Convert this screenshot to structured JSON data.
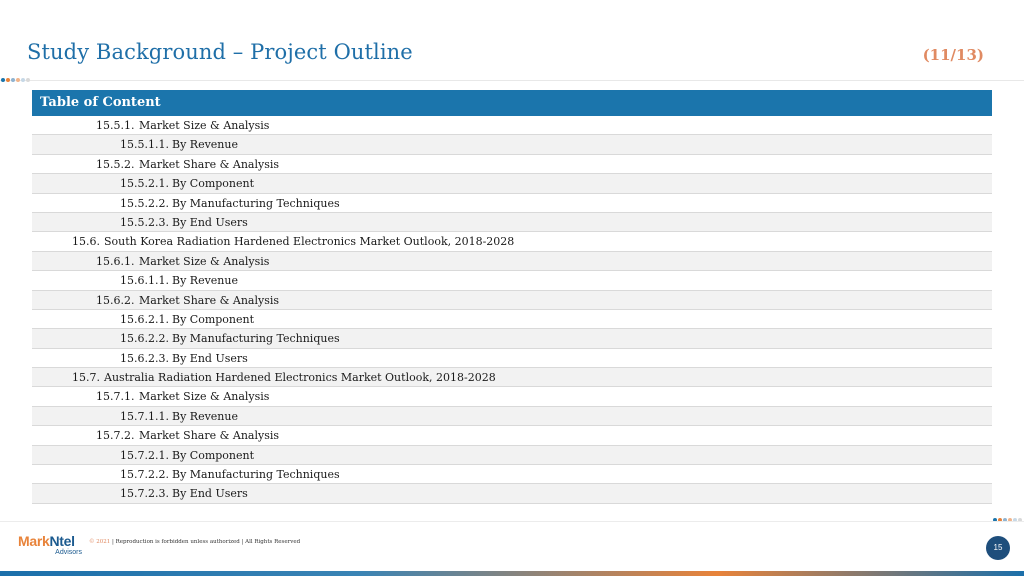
{
  "header": {
    "title": "Study Background – Project Outline",
    "page_counter": "(11/13)"
  },
  "colors": {
    "title": "#1f6fa8",
    "accent_orange": "#e08a62",
    "table_header": "#1b75ac",
    "row_alt": "#f2f2f2",
    "dots": [
      "#1b75ac",
      "#e8833a",
      "#8fb3d0",
      "#f0b58c",
      "#c6d8e6",
      "#d9d9d9"
    ]
  },
  "toc": {
    "header": "Table of Content",
    "rows": [
      {
        "num": "15.5.1.",
        "label": "Market Size & Analysis",
        "level": 2
      },
      {
        "num": "15.5.1.1.",
        "label": "By Revenue",
        "level": 3
      },
      {
        "num": "15.5.2.",
        "label": "Market Share & Analysis",
        "level": 2
      },
      {
        "num": "15.5.2.1.",
        "label": "By Component",
        "level": 3
      },
      {
        "num": "15.5.2.2.",
        "label": "By Manufacturing Techniques",
        "level": 3
      },
      {
        "num": "15.5.2.3.",
        "label": "By End Users",
        "level": 3
      },
      {
        "num": "15.6.",
        "label": "South Korea Radiation Hardened Electronics Market Outlook, 2018-2028",
        "level": 1
      },
      {
        "num": "15.6.1.",
        "label": "Market Size & Analysis",
        "level": 2
      },
      {
        "num": "15.6.1.1.",
        "label": "By Revenue",
        "level": 3
      },
      {
        "num": "15.6.2.",
        "label": "Market Share & Analysis",
        "level": 2
      },
      {
        "num": "15.6.2.1.",
        "label": "By Component",
        "level": 3
      },
      {
        "num": "15.6.2.2.",
        "label": "By Manufacturing Techniques",
        "level": 3
      },
      {
        "num": "15.6.2.3.",
        "label": "By End Users",
        "level": 3
      },
      {
        "num": "15.7.",
        "label": "Australia Radiation Hardened Electronics Market Outlook, 2018-2028",
        "level": 1
      },
      {
        "num": "15.7.1.",
        "label": "Market Size & Analysis",
        "level": 2
      },
      {
        "num": "15.7.1.1.",
        "label": "By Revenue",
        "level": 3
      },
      {
        "num": "15.7.2.",
        "label": "Market Share & Analysis",
        "level": 2
      },
      {
        "num": "15.7.2.1.",
        "label": "By Component",
        "level": 3
      },
      {
        "num": "15.7.2.2.",
        "label": "By Manufacturing Techniques",
        "level": 3
      },
      {
        "num": "15.7.2.3.",
        "label": "By End Users",
        "level": 3
      }
    ]
  },
  "footer": {
    "logo_mark": "Mark",
    "logo_ntel": "Ntel",
    "logo_sub": "Advisors",
    "copyright": "© 2021",
    "notice": "| Reproduction is forbidden unless authorized | All Rights Reserved",
    "page_number": "15"
  }
}
